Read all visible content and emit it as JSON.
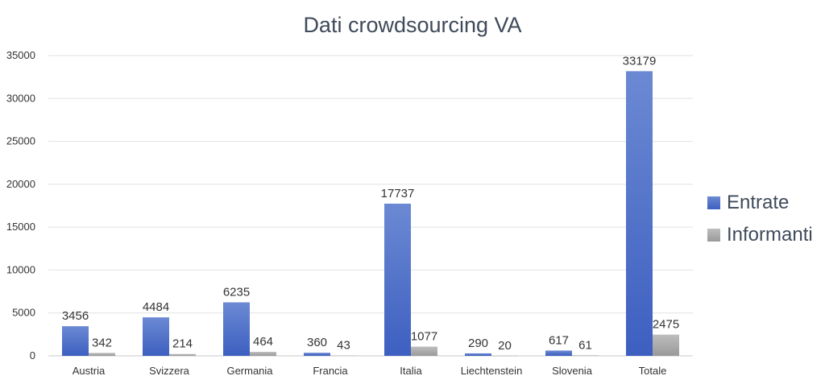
{
  "chart_data": {
    "type": "bar",
    "title": "Dati crowdsourcing VA",
    "categories": [
      "Austria",
      "Svizzera",
      "Germania",
      "Francia",
      "Italia",
      "Liechtenstein",
      "Slovenia",
      "Totale"
    ],
    "series": [
      {
        "name": "Entrate",
        "values": [
          3456,
          4484,
          6235,
          360,
          17737,
          290,
          617,
          33179
        ],
        "color": "#4a6cc7"
      },
      {
        "name": "Informanti",
        "values": [
          342,
          214,
          464,
          43,
          1077,
          20,
          61,
          2475
        ],
        "color": "#a3a3a3"
      }
    ],
    "yticks": [
      "0",
      "5000",
      "10000",
      "15000",
      "20000",
      "25000",
      "30000",
      "35000"
    ],
    "ylim": [
      0,
      35000
    ],
    "grid": true,
    "legend_position": "right",
    "data_labels": true
  }
}
